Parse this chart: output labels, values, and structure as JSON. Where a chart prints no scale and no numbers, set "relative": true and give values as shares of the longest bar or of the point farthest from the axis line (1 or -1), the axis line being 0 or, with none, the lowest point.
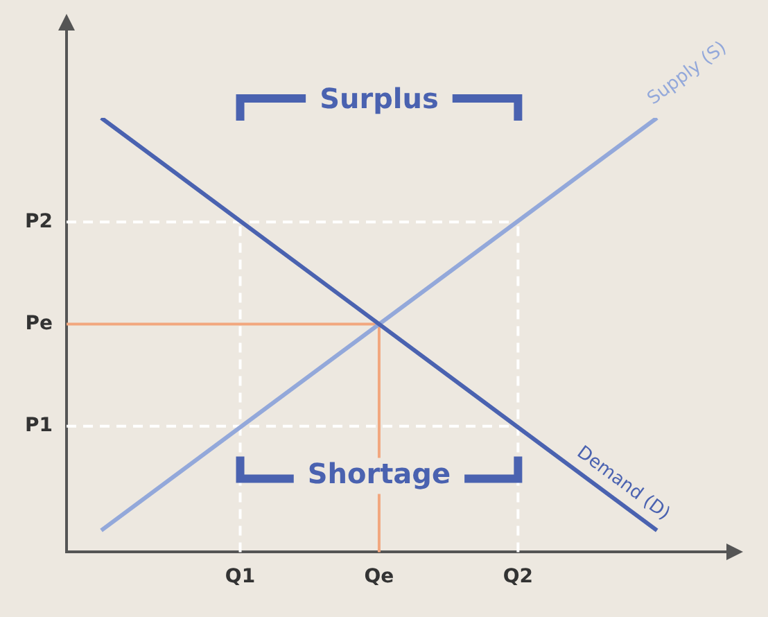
{
  "chart_data": {
    "type": "line",
    "relative": true,
    "categories": [
      null,
      null,
      null,
      null,
      null,
      "Q1",
      null,
      null,
      null,
      "Qe",
      null,
      null,
      null,
      "Q2",
      null,
      null,
      null,
      null,
      null,
      null
    ],
    "series": [
      {
        "name": "Demand (D)",
        "color": "#4a62b0",
        "values": [
          null,
          1,
          null,
          null,
          null,
          null,
          null,
          null,
          null,
          null,
          null,
          null,
          null,
          null,
          null,
          null,
          null,
          0.05,
          null,
          null
        ]
      },
      {
        "name": "Supply (S)",
        "color": "#93a8da",
        "values": [
          null,
          0.05,
          null,
          null,
          null,
          null,
          null,
          null,
          null,
          null,
          null,
          null,
          null,
          null,
          null,
          null,
          null,
          1,
          null,
          null
        ]
      }
    ],
    "ref_lines": [
      {
        "axis": "y",
        "value": 0.76,
        "label": "P2",
        "color": "#ffffff",
        "line_style": "dashed"
      },
      {
        "axis": "y",
        "value": 0.525,
        "label": "Pe",
        "color": "#f2a77e",
        "line_style": "solid"
      },
      {
        "axis": "y",
        "value": 0.29,
        "label": "P1",
        "color": "#ffffff",
        "line_style": "dashed"
      },
      {
        "axis": "x",
        "value": "Q1",
        "color": "#ffffff",
        "line_style": "dashed"
      },
      {
        "axis": "x",
        "value": "Qe",
        "color": "#f2a77e",
        "line_style": "solid"
      },
      {
        "axis": "x",
        "value": "Q2",
        "color": "#ffffff",
        "line_style": "dashed"
      }
    ],
    "annotations": [
      "Surplus",
      "Shortage"
    ],
    "grid": false,
    "legend": false,
    "marker": "none",
    "line_style": "solid"
  }
}
